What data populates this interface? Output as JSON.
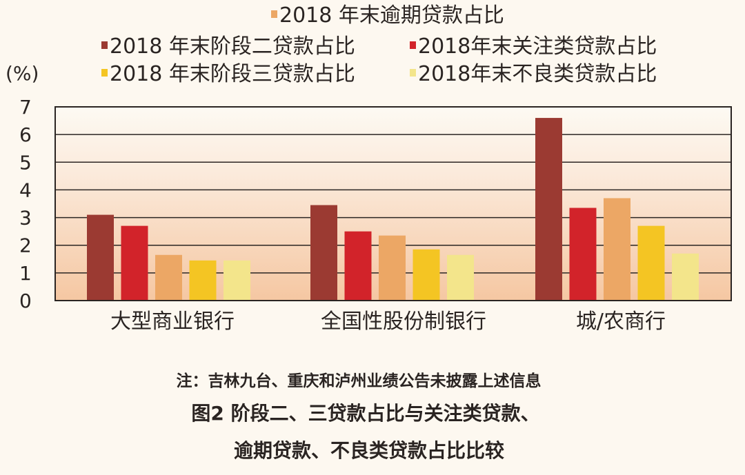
{
  "chart_data": {
    "type": "bar",
    "unit_label": "(%)",
    "categories": [
      "大型商业银行",
      "全国性股份制银行",
      "城/农商行"
    ],
    "ylim": [
      0,
      7
    ],
    "yticks": [
      "0",
      "1",
      "2",
      "3",
      "4",
      "5",
      "6",
      "7"
    ],
    "series": [
      {
        "name": "2018年末阶段二贷款占比",
        "legend_label": "2018 年末阶段二贷款占比",
        "color": "#9b3a32",
        "values": [
          3.1,
          3.45,
          6.6
        ]
      },
      {
        "name": "2018年末关注类贷款占比",
        "legend_label": "2018年末关注类贷款占比",
        "color": "#d2232a",
        "values": [
          2.7,
          2.5,
          3.35
        ]
      },
      {
        "name": "2018年末逾期贷款占比",
        "legend_label": "2018 年末逾期贷款占比",
        "color": "#eca765",
        "values": [
          1.65,
          2.35,
          3.7
        ]
      },
      {
        "name": "2018年末阶段三贷款占比",
        "legend_label": "2018 年末阶段三贷款占比",
        "color": "#f4c523",
        "values": [
          1.45,
          1.85,
          2.7
        ]
      },
      {
        "name": "2018年末不良类贷款占比",
        "legend_label": "2018年末不良类贷款占比",
        "color": "#f3e58b",
        "values": [
          1.45,
          1.65,
          1.7
        ]
      }
    ],
    "legend_placement": "top"
  },
  "note": "注：吉林九台、重庆和泸州业绩公告未披露上述信息",
  "caption": {
    "line1": "图2  阶段二、三贷款占比与关注类贷款、",
    "line2": "逾期贷款、不良类贷款占比比较"
  }
}
